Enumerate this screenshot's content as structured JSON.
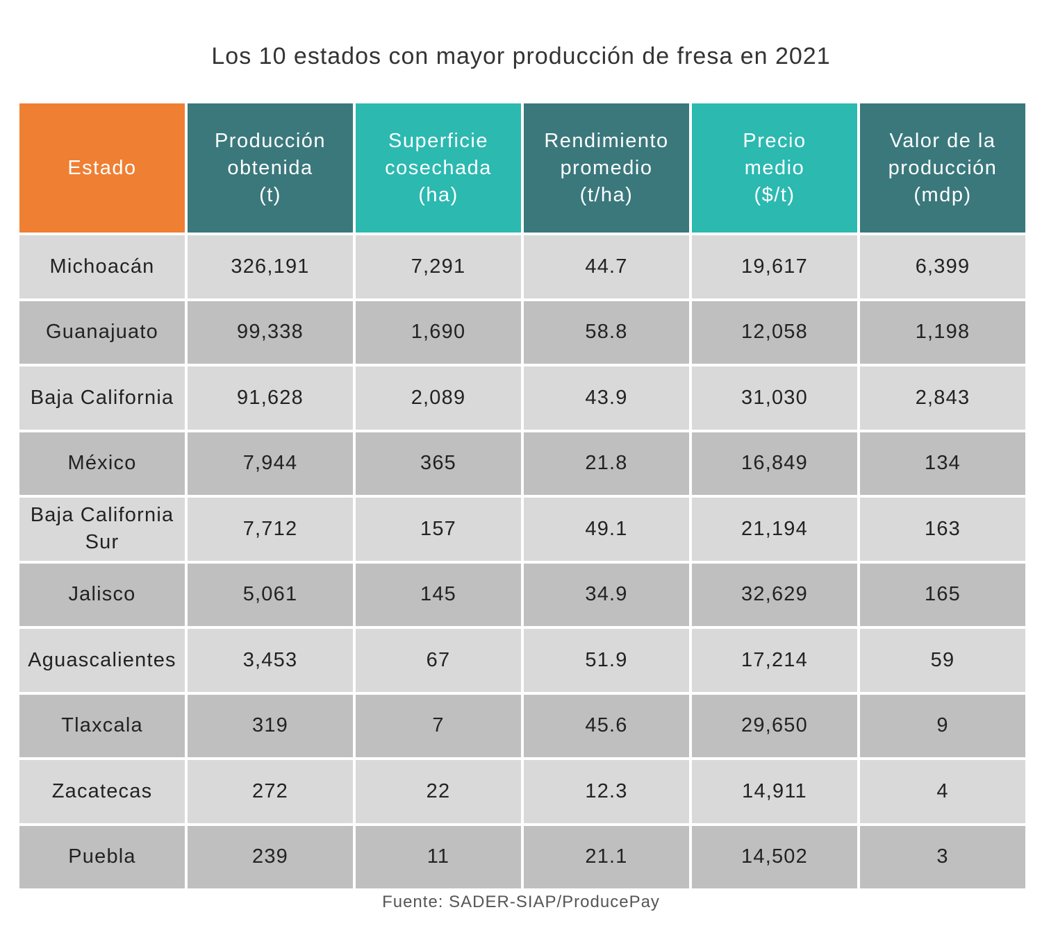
{
  "header_colors": [
    "#ef7f33",
    "#3a787c",
    "#2bb9b0",
    "#3a787c",
    "#2bb9b0",
    "#3a787c"
  ],
  "row_colors": {
    "odd": "#d9d9d9",
    "even": "#bfbfbf"
  },
  "chart_data": {
    "type": "table",
    "title": "Los 10 estados con mayor producción de fresa en 2021",
    "source": "Fuente: SADER-SIAP/ProducePay",
    "columns": [
      {
        "lines": [
          "Estado"
        ]
      },
      {
        "lines": [
          "Producción",
          "obtenida",
          "(t)"
        ]
      },
      {
        "lines": [
          "Superficie",
          "cosechada",
          "(ha)"
        ]
      },
      {
        "lines": [
          "Rendimiento",
          "promedio",
          "(t/ha)"
        ]
      },
      {
        "lines": [
          "Precio",
          "medio",
          "($/t)"
        ]
      },
      {
        "lines": [
          "Valor de la",
          "producción",
          "(mdp)"
        ]
      }
    ],
    "rows": [
      [
        "Michoacán",
        "326,191",
        "7,291",
        "44.7",
        "19,617",
        "6,399"
      ],
      [
        "Guanajuato",
        "99,338",
        "1,690",
        "58.8",
        "12,058",
        "1,198"
      ],
      [
        "Baja California",
        "91,628",
        "2,089",
        "43.9",
        "31,030",
        "2,843"
      ],
      [
        "México",
        "7,944",
        "365",
        "21.8",
        "16,849",
        "134"
      ],
      [
        "Baja California Sur",
        "7,712",
        "157",
        "49.1",
        "21,194",
        "163"
      ],
      [
        "Jalisco",
        "5,061",
        "145",
        "34.9",
        "32,629",
        "165"
      ],
      [
        "Aguascalientes",
        "3,453",
        "67",
        "51.9",
        "17,214",
        "59"
      ],
      [
        "Tlaxcala",
        "319",
        "7",
        "45.6",
        "29,650",
        "9"
      ],
      [
        "Zacatecas",
        "272",
        "22",
        "12.3",
        "14,911",
        "4"
      ],
      [
        "Puebla",
        "239",
        "11",
        "21.1",
        "14,502",
        "3"
      ]
    ]
  }
}
